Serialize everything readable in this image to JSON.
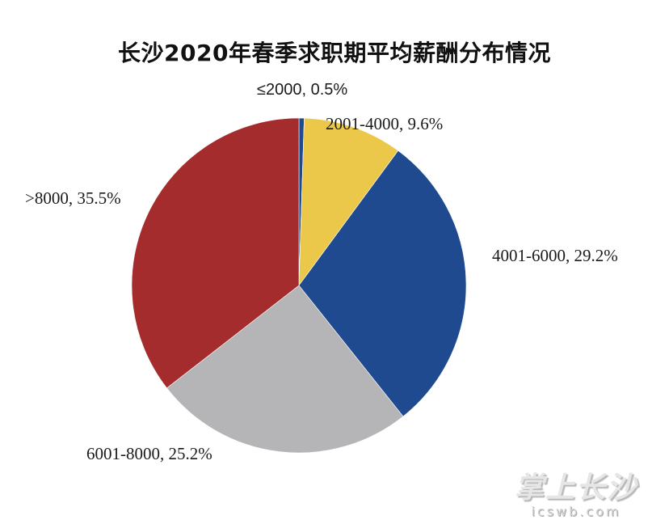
{
  "chart_data": {
    "type": "pie",
    "title": "长沙2020年春季求职期平均薪酬分布情况",
    "categories": [
      "≤2000",
      "2001-4000",
      "4001-6000",
      "6001-8000",
      ">8000"
    ],
    "values": [
      0.5,
      9.6,
      29.2,
      25.2,
      35.5
    ],
    "unit": "%",
    "colors": [
      "#1f4a8f",
      "#ecc84a",
      "#1f4a8f",
      "#b5b5b7",
      "#a52c2c"
    ],
    "labels": [
      "≤2000, 0.5%",
      "2001-4000, 9.6%",
      "4001-6000, 29.2%",
      "6001-8000, 25.2%",
      ">8000, 35.5%"
    ],
    "start_angle": "12 o'clock",
    "direction": "clockwise",
    "legend": "none (data labels outside slices)"
  },
  "watermark": {
    "brand": "掌上长沙",
    "url": "icswb.com"
  }
}
